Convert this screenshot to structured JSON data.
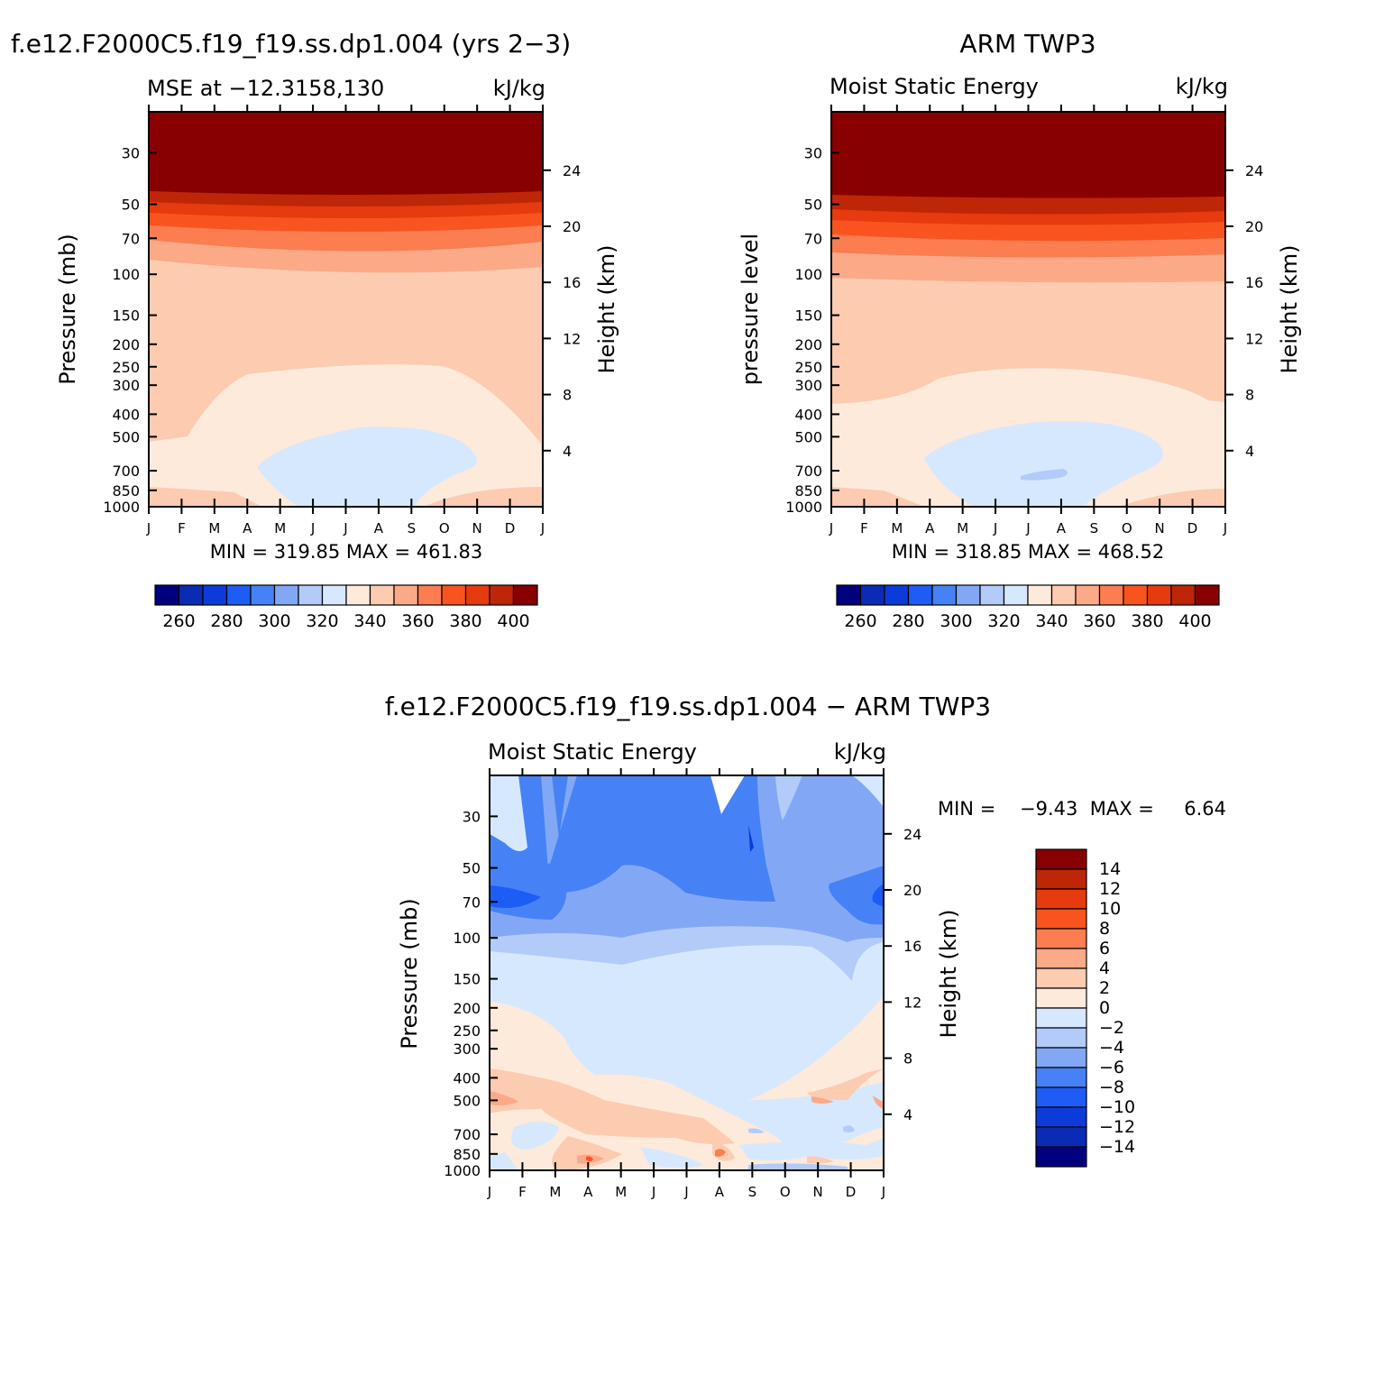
{
  "panels": [
    {
      "id": "model",
      "title": "f.e12.F2000C5.f19_f19.ss.dp1.004 (yrs 2−3)",
      "subtitle_left": "MSE at −12.3158,130",
      "subtitle_right": "kJ/kg",
      "ylabel_left": "Pressure (mb)",
      "ylabel_right": "Height (km)",
      "minmax": "MIN = 319.85 MAX = 461.83"
    },
    {
      "id": "obs",
      "title": "ARM TWP3",
      "subtitle_left": "Moist Static Energy",
      "subtitle_right": "kJ/kg",
      "ylabel_left": "pressure level",
      "ylabel_right": "Height (km)",
      "minmax": "MIN = 318.85 MAX = 468.52"
    },
    {
      "id": "diff",
      "title": "f.e12.F2000C5.f19_f19.ss.dp1.004 − ARM TWP3",
      "subtitle_left": "Moist Static Energy",
      "subtitle_right": "kJ/kg",
      "ylabel_left": "Pressure (mb)",
      "ylabel_right": "Height (km)",
      "minmax_min": "MIN =    −9.43",
      "minmax_max": "MAX =     6.64"
    }
  ],
  "chart_data": [
    {
      "type": "heatmap",
      "title": "f.e12.F2000C5.f19_f19.ss.dp1.004 (yrs 2−3)",
      "subtitle": "MSE at −12.3158,130",
      "units": "kJ/kg",
      "xlabel": "",
      "x_ticks": [
        "J",
        "F",
        "M",
        "A",
        "M",
        "J",
        "J",
        "A",
        "S",
        "O",
        "N",
        "D",
        "J"
      ],
      "ylabel": "Pressure (mb)",
      "y_ticks": [
        30,
        50,
        70,
        100,
        150,
        200,
        250,
        300,
        400,
        500,
        700,
        850,
        1000
      ],
      "y2label": "Height (km)",
      "y2_ticks": [
        4,
        8,
        12,
        16,
        20,
        24
      ],
      "ylim": [
        20,
        1000
      ],
      "y_scale": "log",
      "min": 319.85,
      "max": 461.83
    },
    {
      "type": "heatmap",
      "title": "ARM TWP3",
      "subtitle": "Moist Static Energy",
      "units": "kJ/kg",
      "xlabel": "",
      "x_ticks": [
        "J",
        "F",
        "M",
        "A",
        "M",
        "J",
        "J",
        "A",
        "S",
        "O",
        "N",
        "D",
        "J"
      ],
      "ylabel": "pressure level",
      "y_ticks": [
        30,
        50,
        70,
        100,
        150,
        200,
        250,
        300,
        400,
        500,
        700,
        850,
        1000
      ],
      "y2label": "Height (km)",
      "y2_ticks": [
        4,
        8,
        12,
        16,
        20,
        24
      ],
      "ylim": [
        20,
        1000
      ],
      "y_scale": "log",
      "min": 318.85,
      "max": 468.52
    },
    {
      "type": "heatmap",
      "title": "f.e12.F2000C5.f19_f19.ss.dp1.004 − ARM TWP3",
      "subtitle": "Moist Static Energy",
      "units": "kJ/kg",
      "xlabel": "",
      "x_ticks": [
        "J",
        "F",
        "M",
        "A",
        "M",
        "J",
        "J",
        "A",
        "S",
        "O",
        "N",
        "D",
        "J"
      ],
      "ylabel": "Pressure (mb)",
      "y_ticks": [
        30,
        50,
        70,
        100,
        150,
        200,
        250,
        300,
        400,
        500,
        700,
        850,
        1000
      ],
      "y2label": "Height (km)",
      "y2_ticks": [
        4,
        8,
        12,
        16,
        20,
        24
      ],
      "ylim": [
        20,
        1000
      ],
      "y_scale": "log",
      "min": -9.43,
      "max": 6.64
    }
  ],
  "colorbar_top": {
    "orientation": "horizontal",
    "labels": [
      "260",
      "280",
      "300",
      "320",
      "340",
      "360",
      "380",
      "400"
    ]
  },
  "colorbar_diff": {
    "orientation": "vertical",
    "labels": [
      "14",
      "12",
      "10",
      "8",
      "6",
      "4",
      "2",
      "0",
      "−2",
      "−4",
      "−6",
      "−8",
      "−10",
      "−12",
      "−14"
    ]
  },
  "palette": [
    "#00007f",
    "#0a2bb4",
    "#0c3bd9",
    "#1d5cf5",
    "#4682f5",
    "#82a8f5",
    "#b2cbf9",
    "#d6e8fe",
    "#fdeadb",
    "#fccbb0",
    "#fca987",
    "#fb7d50",
    "#f9541f",
    "#e63a0f",
    "#bd2607",
    "#890000"
  ]
}
